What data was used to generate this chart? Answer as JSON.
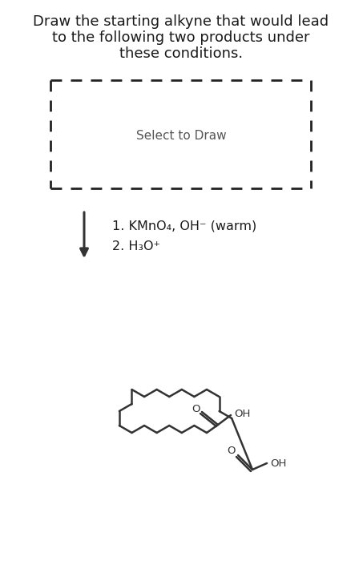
{
  "title_line1": "Draw the starting alkyne that would lead",
  "title_line2": "to the following two products under",
  "title_line3": "these conditions.",
  "select_to_draw": "Select to Draw",
  "condition1": "1. KMnO₄, OH⁻ (warm)",
  "condition2": "2. H₃O⁺",
  "bg_color": "#ffffff",
  "text_color": "#1a1a1a",
  "box_color": "#222222",
  "arrow_color": "#333333",
  "molecule_color": "#333333",
  "title_fontsize": 13,
  "select_fontsize": 11,
  "cond_fontsize": 11.5,
  "label_fontsize": 9.5
}
